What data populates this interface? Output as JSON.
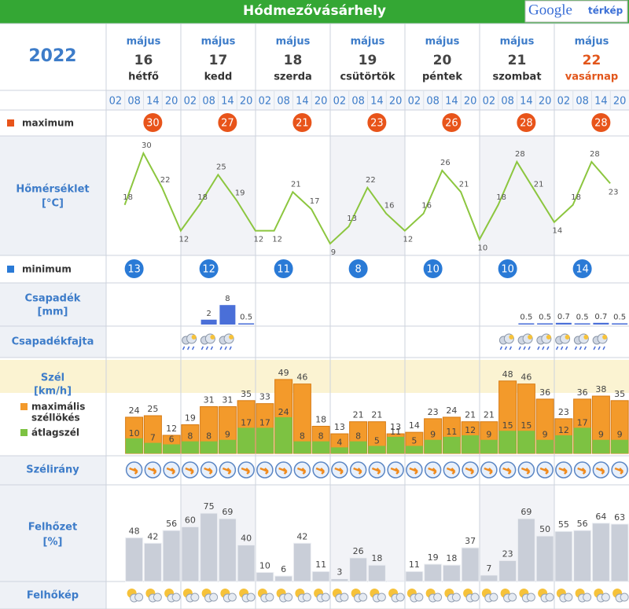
{
  "header": {
    "title": "Hódmezővásárhely",
    "logo": [
      "Google",
      "térkép"
    ],
    "year": "2022"
  },
  "days": [
    {
      "month": "május",
      "day": "16",
      "weekday": "hétfő"
    },
    {
      "month": "május",
      "day": "17",
      "weekday": "kedd"
    },
    {
      "month": "május",
      "day": "18",
      "weekday": "szerda"
    },
    {
      "month": "május",
      "day": "19",
      "weekday": "csütörtök"
    },
    {
      "month": "május",
      "day": "20",
      "weekday": "péntek"
    },
    {
      "month": "május",
      "day": "21",
      "weekday": "szombat"
    },
    {
      "month": "május",
      "day": "22",
      "weekday": "vasárnap"
    }
  ],
  "hours": [
    "02",
    "08",
    "14",
    "20"
  ],
  "rows": {
    "maximum": {
      "label": "maximum",
      "values": [
        30,
        27,
        21,
        23,
        26,
        28,
        28
      ]
    },
    "temperature": {
      "label": "Hőmérséklet",
      "unit": "[°C]",
      "values": [
        18,
        30,
        22,
        12,
        18,
        25,
        19,
        12,
        12,
        21,
        17,
        9,
        13,
        22,
        16,
        12,
        16,
        26,
        21,
        10,
        18,
        28,
        21,
        14,
        18,
        28,
        23
      ]
    },
    "minimum": {
      "label": "minimum",
      "values": [
        13,
        12,
        11,
        8,
        10,
        10,
        14
      ]
    },
    "precipitation": {
      "label": "Csapadék",
      "unit": "[mm]",
      "values": [
        null,
        null,
        null,
        null,
        2,
        8,
        0.5,
        null,
        null,
        null,
        null,
        null,
        null,
        null,
        null,
        null,
        null,
        null,
        null,
        null,
        null,
        0.5,
        0.5,
        0.7,
        0.5,
        0.7,
        0.5
      ]
    },
    "precipitation_type": {
      "label": "Csapadékfajta"
    },
    "wind": {
      "label": "Szél",
      "unit": "[km/h]",
      "gust_label": [
        "maximális",
        "széllökés"
      ],
      "avg_label": "átlagszél",
      "gust": [
        24,
        25,
        12,
        19,
        31,
        31,
        35,
        33,
        49,
        46,
        18,
        13,
        21,
        21,
        13,
        14,
        23,
        24,
        21,
        21,
        48,
        46,
        36,
        23,
        36,
        38,
        35
      ],
      "avg": [
        10,
        7,
        6,
        8,
        8,
        9,
        17,
        17,
        24,
        8,
        8,
        4,
        8,
        5,
        11,
        5,
        9,
        11,
        12,
        9,
        15,
        15,
        9,
        12,
        17,
        9,
        9
      ]
    },
    "wind_direction": {
      "label": "Szélirány"
    },
    "cloud_cover": {
      "label": "Felhőzet",
      "unit": "[%]",
      "values": [
        48,
        42,
        56,
        60,
        75,
        69,
        40,
        10,
        6,
        42,
        11,
        3,
        26,
        18,
        1,
        11,
        19,
        18,
        37,
        7,
        23,
        69,
        50,
        55,
        56,
        64,
        63
      ],
      "value_labels": [
        "48",
        "42",
        "56",
        "60",
        "75",
        "69",
        "40",
        "10",
        "6",
        "42",
        "11",
        "3",
        "26",
        "18",
        null,
        "11",
        "19",
        "18",
        "37",
        "7",
        "23",
        "69",
        "50",
        "55",
        "56",
        "64",
        "63"
      ]
    },
    "cloud_picture": {
      "label": "Felhőkép"
    }
  }
}
